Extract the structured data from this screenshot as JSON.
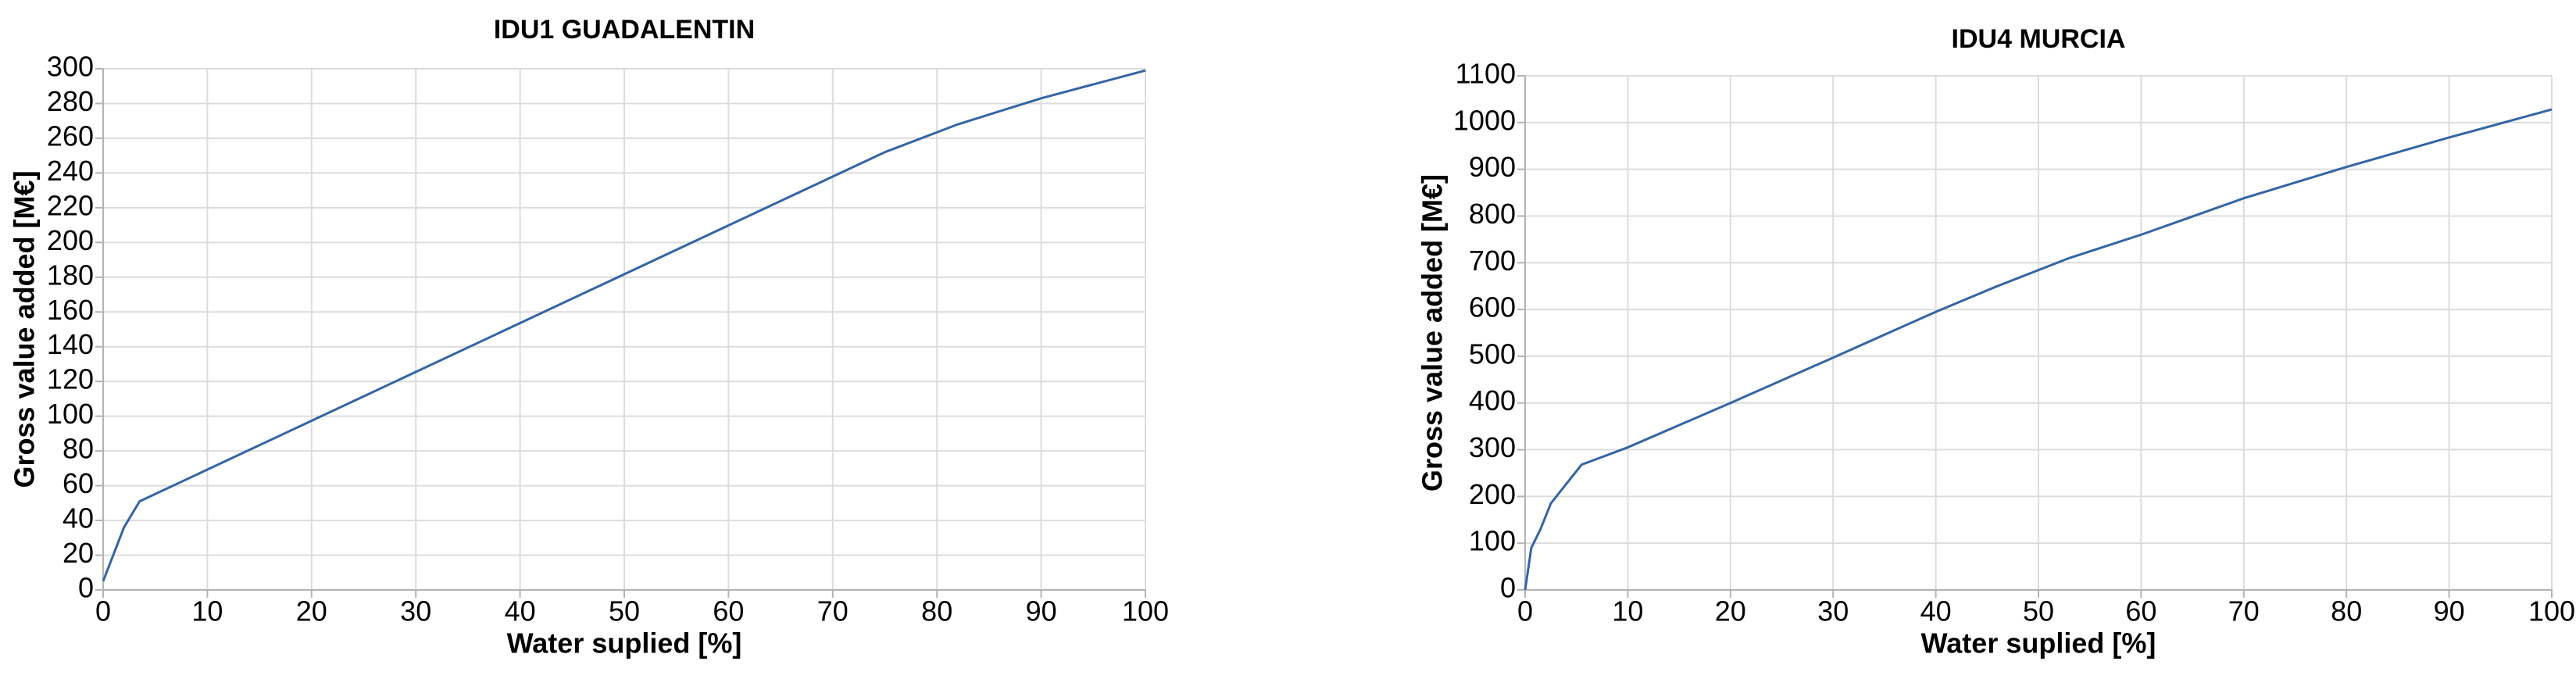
{
  "chart_data": [
    {
      "type": "line",
      "title": "IDU1 GUADALENTIN",
      "x_label": "Water suplied [%]",
      "y_label": "Gross value added [M€]",
      "xlim": [
        0,
        100
      ],
      "ylim": [
        0,
        300
      ],
      "xticks": [
        0,
        10,
        20,
        30,
        40,
        50,
        60,
        70,
        80,
        90,
        100
      ],
      "yticks": [
        0,
        20,
        40,
        60,
        80,
        100,
        120,
        140,
        160,
        180,
        200,
        220,
        240,
        260,
        280,
        300
      ],
      "grid": true,
      "series": [
        {
          "color": "#3465a4",
          "x": [
            0,
            2,
            3.5,
            75,
            82,
            90,
            100
          ],
          "values": [
            5,
            36,
            51,
            252,
            268,
            283,
            299
          ]
        }
      ]
    },
    {
      "type": "line",
      "title": "IDU4 MURCIA",
      "x_label": "Water suplied [%]",
      "y_label": "Gross value added [M€]",
      "xlim": [
        0,
        100
      ],
      "ylim": [
        0,
        1100
      ],
      "xticks": [
        0,
        10,
        20,
        30,
        40,
        50,
        60,
        70,
        80,
        90,
        100
      ],
      "yticks": [
        0,
        100,
        200,
        300,
        400,
        500,
        600,
        700,
        800,
        900,
        1000,
        1100
      ],
      "grid": true,
      "series": [
        {
          "color": "#3465a4",
          "x": [
            0,
            0.6,
            1.5,
            2.5,
            5.5,
            10,
            20,
            30,
            40,
            46,
            53,
            60,
            70,
            80,
            90,
            97,
            100
          ],
          "values": [
            0,
            90,
            130,
            185,
            268,
            305,
            400,
            497,
            595,
            650,
            710,
            760,
            838,
            905,
            968,
            1010,
            1028
          ]
        }
      ]
    }
  ]
}
